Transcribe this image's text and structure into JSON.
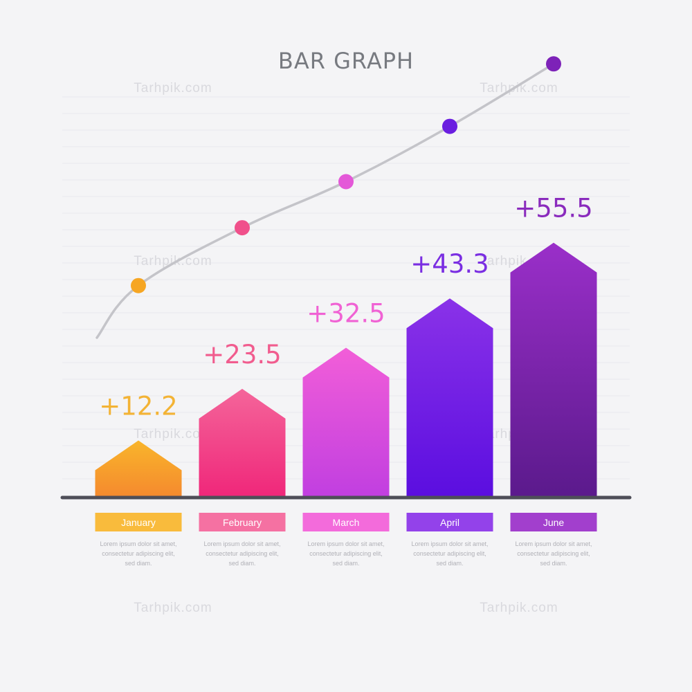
{
  "chart_data": {
    "type": "bar",
    "title": "BAR GRAPH",
    "categories": [
      "January",
      "February",
      "March",
      "April",
      "June"
    ],
    "values": [
      12.2,
      23.5,
      32.5,
      43.3,
      55.5
    ],
    "value_labels": [
      "+12.2",
      "+23.5",
      "+32.5",
      "+43.3",
      "+55.5"
    ],
    "trend_line": true,
    "bar_colors": [
      [
        "#f9b52b",
        "#f58a2e"
      ],
      [
        "#f4659a",
        "#f0277a"
      ],
      [
        "#f25ed8",
        "#c13fe0"
      ],
      [
        "#8a32e8",
        "#5b0ee0"
      ],
      [
        "#9a2fc9",
        "#5b1a8c"
      ]
    ],
    "label_colors": [
      "#f3b335",
      "#f15c8e",
      "#f062d4",
      "#7a2ee2",
      "#8a2bbd"
    ],
    "dot_colors": [
      "#f6a623",
      "#f0508b",
      "#e458d8",
      "#6a1ee0",
      "#7d22b8"
    ],
    "description": [
      [
        "Lorem ipsum dolor sit amet,",
        "consectetur adipiscing elit,",
        "sed diam."
      ],
      [
        "Lorem ipsum dolor sit amet,",
        "consectetur adipiscing elit,",
        "sed diam."
      ],
      [
        "Lorem ipsum dolor sit amet,",
        "consectetur adipiscing elit,",
        "sed diam."
      ],
      [
        "Lorem ipsum dolor sit amet,",
        "consectetur adipiscing elit,",
        "sed diam."
      ],
      [
        "Lorem ipsum dolor sit amet,",
        "consectetur adipiscing elit,",
        "sed diam."
      ]
    ]
  },
  "watermark": "Tarhpik.com"
}
